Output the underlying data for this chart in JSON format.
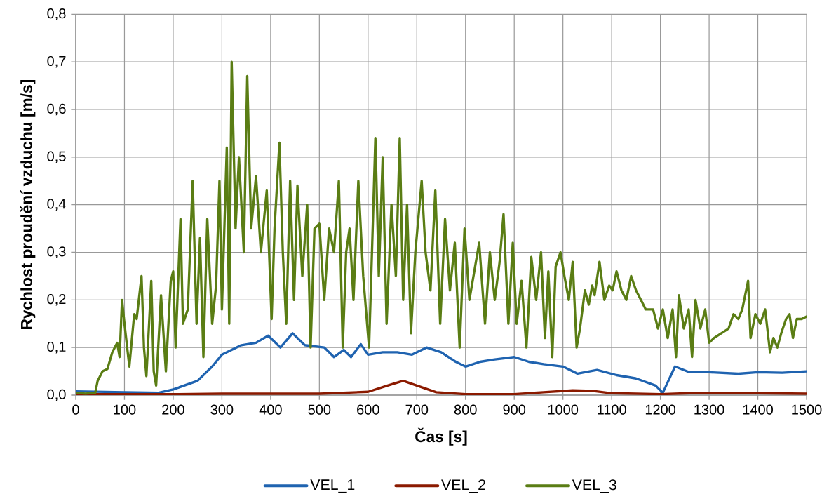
{
  "chart_data": {
    "type": "line",
    "xlabel": "Čas [s]",
    "ylabel": "Rychlost proudění vzduchu [m/s]",
    "xlim": [
      0,
      1500
    ],
    "xticks": [
      0,
      100,
      200,
      300,
      400,
      500,
      600,
      700,
      800,
      900,
      1000,
      1100,
      1200,
      1300,
      1400,
      1500
    ],
    "ylim": [
      0,
      0.8
    ],
    "yticks": [
      {
        "value": 0,
        "label": "0,0"
      },
      {
        "value": 0.1,
        "label": "0,1"
      },
      {
        "value": 0.2,
        "label": "0,2"
      },
      {
        "value": 0.3,
        "label": "0,3"
      },
      {
        "value": 0.4,
        "label": "0,4"
      },
      {
        "value": 0.5,
        "label": "0,5"
      },
      {
        "value": 0.6,
        "label": "0,6"
      },
      {
        "value": 0.7,
        "label": "0,7"
      },
      {
        "value": 0.8,
        "label": "0,8"
      }
    ],
    "grid": true,
    "legend": "bottom",
    "marker": "none",
    "line_style": "solid",
    "series": [
      {
        "name": "VEL_1",
        "color": "#1f63b0",
        "x": [
          0,
          100,
          170,
          200,
          250,
          280,
          300,
          320,
          340,
          370,
          395,
          420,
          445,
          470,
          510,
          530,
          550,
          565,
          585,
          600,
          630,
          660,
          690,
          720,
          750,
          780,
          800,
          830,
          860,
          900,
          930,
          960,
          1000,
          1030,
          1070,
          1110,
          1150,
          1190,
          1205,
          1230,
          1260,
          1300,
          1360,
          1400,
          1450,
          1500
        ],
        "values": [
          0.008,
          0.006,
          0.005,
          0.012,
          0.03,
          0.06,
          0.085,
          0.095,
          0.105,
          0.11,
          0.125,
          0.1,
          0.13,
          0.105,
          0.1,
          0.08,
          0.095,
          0.08,
          0.107,
          0.085,
          0.09,
          0.09,
          0.085,
          0.1,
          0.09,
          0.07,
          0.06,
          0.07,
          0.075,
          0.08,
          0.07,
          0.065,
          0.06,
          0.045,
          0.053,
          0.042,
          0.035,
          0.02,
          0.005,
          0.06,
          0.048,
          0.048,
          0.045,
          0.048,
          0.047,
          0.05
        ]
      },
      {
        "name": "VEL_2",
        "color": "#8b1a00",
        "x": [
          0,
          200,
          300,
          500,
          600,
          640,
          672,
          700,
          740,
          800,
          900,
          960,
          1020,
          1060,
          1100,
          1200,
          1260,
          1300,
          1400,
          1500
        ],
        "values": [
          0.002,
          0.002,
          0.003,
          0.003,
          0.007,
          0.02,
          0.03,
          0.02,
          0.006,
          0.002,
          0.002,
          0.006,
          0.01,
          0.009,
          0.004,
          0.002,
          0.004,
          0.005,
          0.004,
          0.003
        ]
      },
      {
        "name": "VEL_3",
        "color": "#5a7d14",
        "x": [
          0,
          20,
          40,
          45,
          55,
          65,
          75,
          85,
          90,
          95,
          100,
          110,
          120,
          125,
          135,
          140,
          145,
          155,
          160,
          165,
          175,
          185,
          195,
          200,
          205,
          215,
          220,
          230,
          240,
          248,
          255,
          262,
          270,
          280,
          288,
          295,
          300,
          310,
          315,
          320,
          328,
          335,
          345,
          352,
          360,
          370,
          380,
          392,
          402,
          408,
          418,
          425,
          432,
          440,
          448,
          455,
          465,
          475,
          482,
          490,
          500,
          510,
          520,
          530,
          540,
          548,
          555,
          562,
          570,
          580,
          590,
          602,
          608,
          615,
          622,
          630,
          638,
          648,
          657,
          665,
          672,
          680,
          688,
          697,
          710,
          718,
          728,
          738,
          748,
          758,
          768,
          778,
          788,
          798,
          808,
          818,
          828,
          840,
          850,
          860,
          870,
          878,
          888,
          897,
          905,
          915,
          925,
          935,
          945,
          955,
          963,
          970,
          978,
          985,
          995,
          1003,
          1012,
          1020,
          1028,
          1035,
          1045,
          1053,
          1060,
          1065,
          1075,
          1085,
          1095,
          1102,
          1110,
          1120,
          1130,
          1140,
          1150,
          1160,
          1170,
          1185,
          1195,
          1205,
          1215,
          1225,
          1232,
          1238,
          1248,
          1258,
          1265,
          1272,
          1282,
          1292,
          1300,
          1310,
          1325,
          1340,
          1350,
          1360,
          1368,
          1380,
          1385,
          1395,
          1405,
          1415,
          1425,
          1432,
          1440,
          1448,
          1458,
          1465,
          1472,
          1480,
          1490,
          1500
        ],
        "values": [
          0.005,
          0.003,
          0.005,
          0.03,
          0.05,
          0.055,
          0.09,
          0.11,
          0.08,
          0.2,
          0.15,
          0.06,
          0.17,
          0.16,
          0.25,
          0.1,
          0.04,
          0.24,
          0.05,
          0.02,
          0.21,
          0.05,
          0.24,
          0.26,
          0.1,
          0.37,
          0.15,
          0.18,
          0.45,
          0.15,
          0.33,
          0.08,
          0.37,
          0.15,
          0.23,
          0.45,
          0.18,
          0.52,
          0.15,
          0.7,
          0.35,
          0.5,
          0.3,
          0.67,
          0.35,
          0.46,
          0.3,
          0.43,
          0.16,
          0.35,
          0.53,
          0.3,
          0.15,
          0.45,
          0.2,
          0.44,
          0.25,
          0.4,
          0.1,
          0.35,
          0.36,
          0.2,
          0.35,
          0.3,
          0.45,
          0.1,
          0.3,
          0.35,
          0.2,
          0.45,
          0.25,
          0.1,
          0.3,
          0.54,
          0.25,
          0.5,
          0.15,
          0.4,
          0.25,
          0.54,
          0.2,
          0.4,
          0.13,
          0.3,
          0.45,
          0.3,
          0.22,
          0.43,
          0.15,
          0.37,
          0.22,
          0.32,
          0.1,
          0.35,
          0.2,
          0.26,
          0.32,
          0.15,
          0.3,
          0.2,
          0.28,
          0.38,
          0.15,
          0.32,
          0.15,
          0.24,
          0.1,
          0.29,
          0.2,
          0.3,
          0.12,
          0.26,
          0.08,
          0.27,
          0.3,
          0.25,
          0.2,
          0.28,
          0.1,
          0.14,
          0.22,
          0.19,
          0.23,
          0.21,
          0.28,
          0.2,
          0.23,
          0.22,
          0.26,
          0.22,
          0.2,
          0.25,
          0.22,
          0.2,
          0.18,
          0.18,
          0.14,
          0.18,
          0.12,
          0.18,
          0.08,
          0.21,
          0.14,
          0.18,
          0.08,
          0.2,
          0.14,
          0.18,
          0.11,
          0.12,
          0.13,
          0.14,
          0.17,
          0.16,
          0.18,
          0.24,
          0.12,
          0.17,
          0.15,
          0.18,
          0.09,
          0.12,
          0.1,
          0.13,
          0.16,
          0.17,
          0.12,
          0.16,
          0.16,
          0.165
        ]
      }
    ]
  }
}
